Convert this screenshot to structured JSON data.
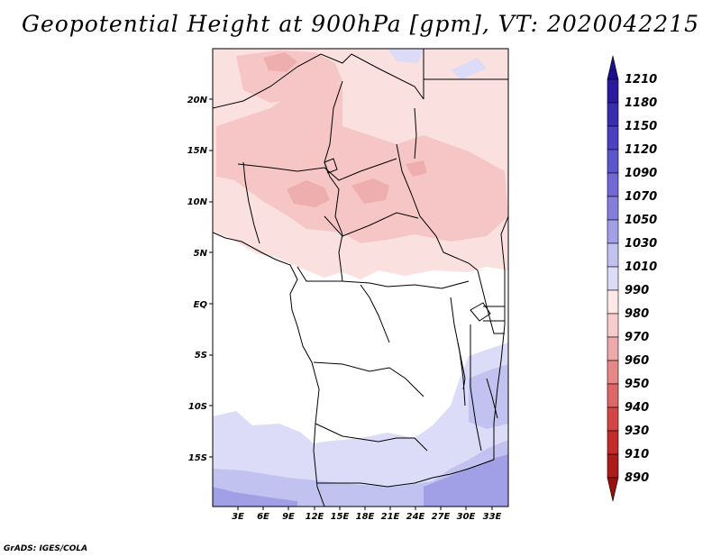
{
  "title": "Geopotential Height at 900hPa [gpm], VT: 2020042215",
  "footer": "GrADS: IGES/COLA",
  "map": {
    "lat_labels": [
      "20N",
      "15N",
      "10N",
      "5N",
      "EQ",
      "5S",
      "10S",
      "15S"
    ],
    "lat_values": [
      20,
      15,
      10,
      5,
      0,
      -5,
      -10,
      -15
    ],
    "lon_labels": [
      "3E",
      "6E",
      "9E",
      "12E",
      "15E",
      "18E",
      "21E",
      "24E",
      "27E",
      "30E",
      "33E"
    ],
    "lon_values": [
      3,
      6,
      9,
      12,
      15,
      18,
      21,
      24,
      27,
      30,
      33
    ],
    "lon_range": [
      0,
      35
    ],
    "lat_range": [
      -20,
      25
    ]
  },
  "colorbar": {
    "labels": [
      "1210",
      "1180",
      "1150",
      "1120",
      "1090",
      "1070",
      "1050",
      "1030",
      "1010",
      "990",
      "980",
      "970",
      "960",
      "950",
      "940",
      "930",
      "910",
      "890"
    ],
    "colors": [
      "#1a0e8c",
      "#2a1c9e",
      "#3a2eb0",
      "#4b40c0",
      "#5c56cc",
      "#7168d6",
      "#857fdc",
      "#a19fe6",
      "#c2c2f0",
      "#dcdcf8",
      "#fde7e7",
      "#f6cccc",
      "#eeaaaa",
      "#e68888",
      "#dd6666",
      "#d44646",
      "#c42c2c",
      "#ad1c1c",
      "#961010"
    ]
  }
}
